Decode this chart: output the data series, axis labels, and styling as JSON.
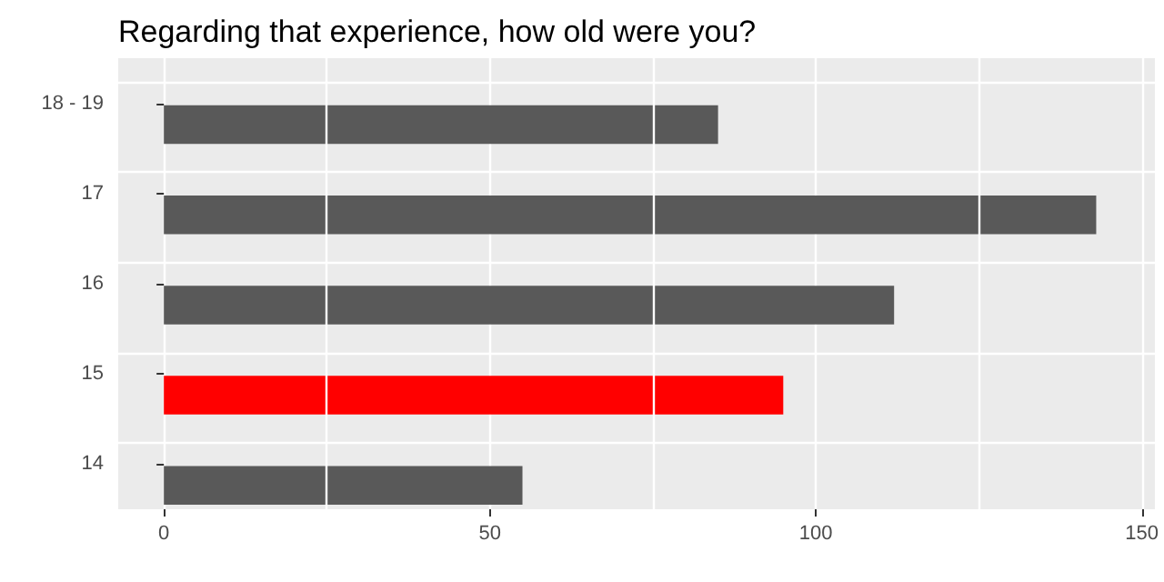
{
  "chart_data": {
    "type": "bar",
    "orientation": "horizontal",
    "title": "Regarding that experience, how old were you?",
    "categories": [
      "18 - 19",
      "17",
      "16",
      "15",
      "14"
    ],
    "values": [
      85,
      143,
      112,
      95,
      55
    ],
    "colors": [
      "#595959",
      "#595959",
      "#595959",
      "#ff0000",
      "#595959"
    ],
    "xlim": [
      -7,
      152
    ],
    "xticks": [
      0,
      50,
      100,
      150
    ],
    "grid": true
  }
}
